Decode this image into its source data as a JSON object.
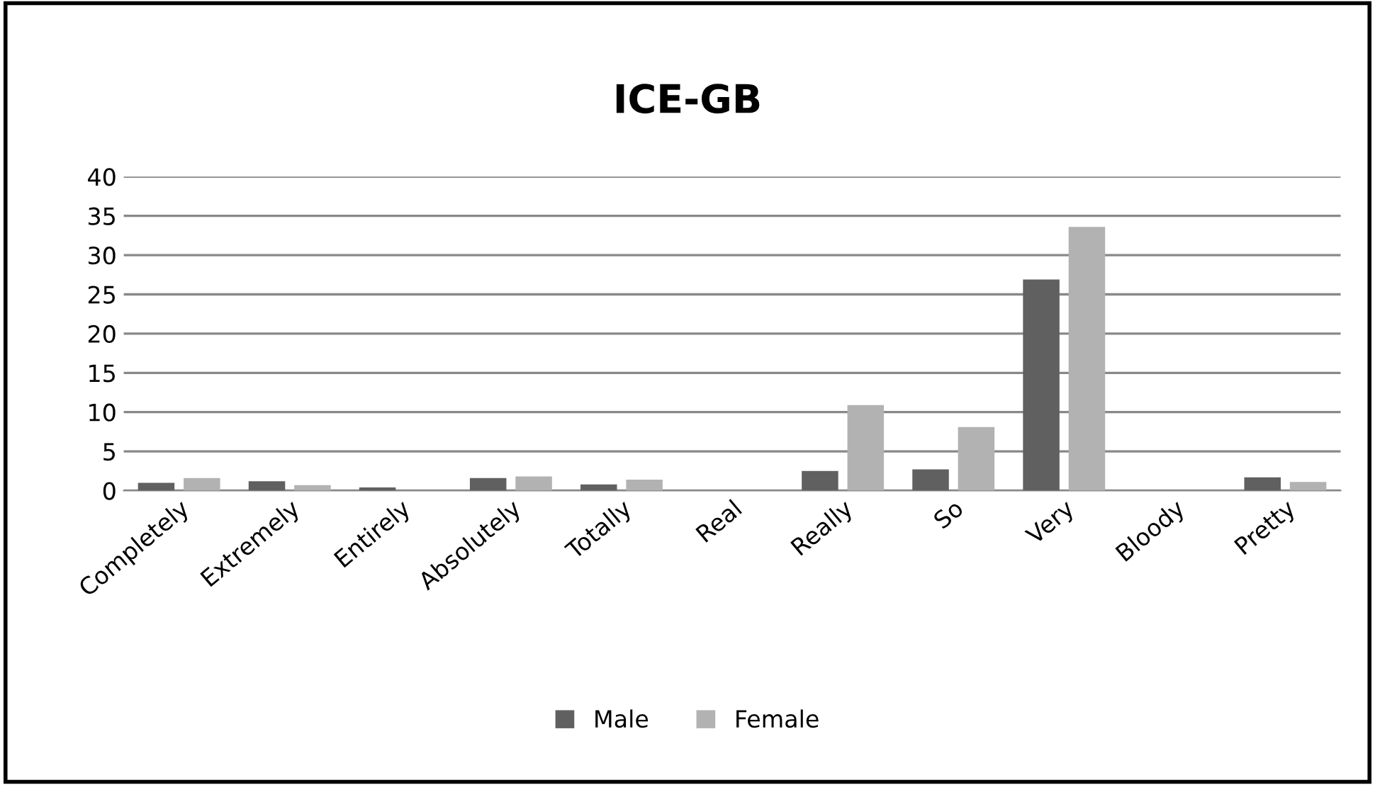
{
  "chart_data": {
    "type": "bar",
    "title": "ICE-GB",
    "categories": [
      "Completely",
      "Extremely",
      "Entirely",
      "Absolutely",
      "Totally",
      "Real",
      "Really",
      "So",
      "Very",
      "Bloody",
      "Pretty"
    ],
    "series": [
      {
        "name": "Male",
        "color": "#606060",
        "values": [
          1.0,
          1.2,
          0.4,
          1.6,
          0.8,
          0,
          2.5,
          2.7,
          26.9,
          0,
          1.7
        ]
      },
      {
        "name": "Female",
        "color": "#b2b2b2",
        "values": [
          1.6,
          0.7,
          0,
          1.8,
          1.4,
          0,
          10.9,
          8.1,
          33.6,
          0,
          1.1
        ]
      }
    ],
    "ylim": [
      0,
      40
    ],
    "yticks": [
      0,
      5,
      10,
      15,
      20,
      25,
      30,
      35,
      40
    ],
    "grid": "y",
    "legend": "bottom"
  }
}
